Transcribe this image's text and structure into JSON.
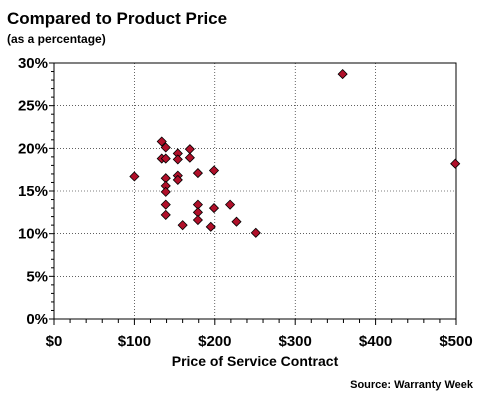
{
  "chart_data": {
    "type": "scatter",
    "title": "Compared to Product Price",
    "subtitle": "(as a percentage)",
    "xlabel": "Price of Service Contract",
    "ylabel": "",
    "source": "Source: Warranty Week",
    "xlim": [
      0,
      500
    ],
    "ylim": [
      0,
      30
    ],
    "x_ticks": [
      0,
      100,
      200,
      300,
      400,
      500
    ],
    "x_tick_labels": [
      "$0",
      "$100",
      "$200",
      "$300",
      "$400",
      "$500"
    ],
    "y_ticks": [
      0,
      5,
      10,
      15,
      20,
      25,
      30
    ],
    "y_tick_labels": [
      "0%",
      "5%",
      "10%",
      "15%",
      "20%",
      "25%",
      "30%"
    ],
    "grid": true,
    "marker": "diamond",
    "marker_color": "#b0102a",
    "points": [
      {
        "x": 100,
        "y": 16.7
      },
      {
        "x": 134,
        "y": 20.8
      },
      {
        "x": 134,
        "y": 18.8
      },
      {
        "x": 139,
        "y": 20.1
      },
      {
        "x": 139,
        "y": 18.8
      },
      {
        "x": 139,
        "y": 16.5
      },
      {
        "x": 139,
        "y": 15.6
      },
      {
        "x": 139,
        "y": 14.9
      },
      {
        "x": 139,
        "y": 13.4
      },
      {
        "x": 139,
        "y": 12.2
      },
      {
        "x": 154,
        "y": 19.4
      },
      {
        "x": 154,
        "y": 18.7
      },
      {
        "x": 154,
        "y": 16.8
      },
      {
        "x": 154,
        "y": 16.3
      },
      {
        "x": 160,
        "y": 11.0
      },
      {
        "x": 169,
        "y": 19.9
      },
      {
        "x": 169,
        "y": 18.9
      },
      {
        "x": 179,
        "y": 17.1
      },
      {
        "x": 179,
        "y": 13.4
      },
      {
        "x": 179,
        "y": 12.5
      },
      {
        "x": 179,
        "y": 11.6
      },
      {
        "x": 195,
        "y": 10.8
      },
      {
        "x": 199,
        "y": 17.4
      },
      {
        "x": 199,
        "y": 13.0
      },
      {
        "x": 219,
        "y": 13.4
      },
      {
        "x": 227,
        "y": 11.4
      },
      {
        "x": 251,
        "y": 10.1
      },
      {
        "x": 359,
        "y": 28.7
      },
      {
        "x": 499,
        "y": 18.2
      }
    ]
  }
}
